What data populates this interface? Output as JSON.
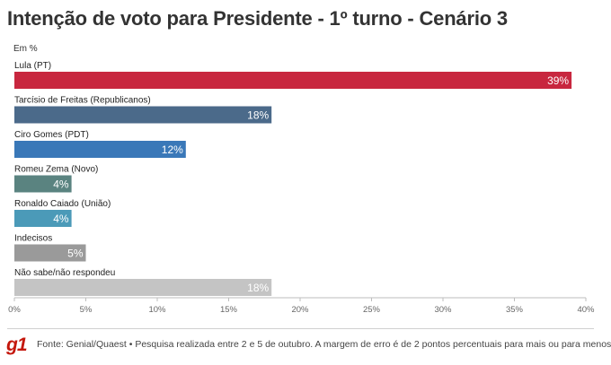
{
  "header": {
    "title": "Intenção de voto para Presidente - 1º turno - Cenário 3",
    "unit_label": "Em %"
  },
  "footer": {
    "logo": "g1",
    "source": "Fonte: Genial/Quaest • Pesquisa realizada entre 2 e 5 de outubro. A margem de erro é de 2 pontos percentuais para mais ou para menos"
  },
  "chart_data": {
    "type": "bar",
    "orientation": "horizontal",
    "title": "Intenção de voto para Presidente - 1º turno - Cenário 3",
    "unit": "Em %",
    "xlim": [
      0,
      40
    ],
    "xticks": [
      0,
      5,
      10,
      15,
      20,
      25,
      30,
      35,
      40
    ],
    "xtick_labels": [
      "0%",
      "5%",
      "10%",
      "15%",
      "20%",
      "25%",
      "30%",
      "35%",
      "40%"
    ],
    "categories": [
      "Lula (PT)",
      "Tarcísio de Freitas (Republicanos)",
      "Ciro Gomes (PDT)",
      "Romeu Zema (Novo)",
      "Ronaldo Caiado (União)",
      "Indecisos",
      "Não sabe/não respondeu"
    ],
    "values": [
      39,
      18,
      12,
      4,
      4,
      5,
      18
    ],
    "value_labels": [
      "39%",
      "18%",
      "12%",
      "4%",
      "4%",
      "5%",
      "18%"
    ],
    "colors": [
      "#c8273f",
      "#4b6a8a",
      "#3a78b8",
      "#5a8380",
      "#4b9ab8",
      "#9a9a9a",
      "#c4c4c4"
    ],
    "grid": false
  }
}
